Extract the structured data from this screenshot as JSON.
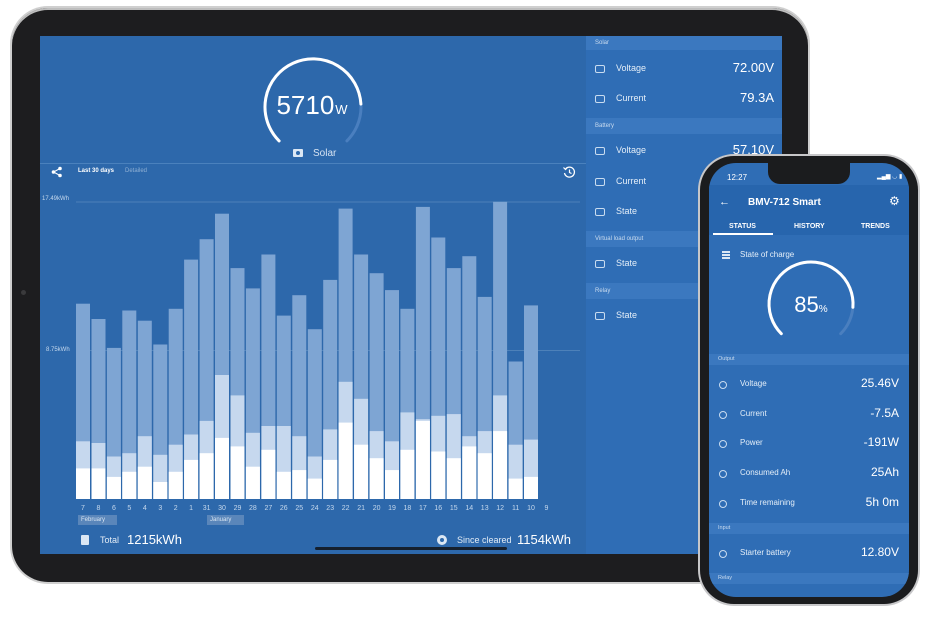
{
  "tablet": {
    "gauge": {
      "value": "5710",
      "unit": "W",
      "label": "Solar",
      "fraction": 0.82
    },
    "history_tabs": {
      "active": "Last 30 days",
      "inactive": "Detailed"
    },
    "chart_data": {
      "type": "bar",
      "title": "",
      "ylabel": "",
      "y_tick_labels": [
        "17.49kWh",
        "8.75kWh"
      ],
      "ylim": [
        0,
        17.49
      ],
      "categories": [
        "7",
        "8",
        "6",
        "5",
        "4",
        "3",
        "2",
        "1",
        "31",
        "30",
        "29",
        "28",
        "27",
        "26",
        "25",
        "24",
        "23",
        "22",
        "21",
        "20",
        "19",
        "18",
        "17",
        "16",
        "15",
        "14",
        "13",
        "12",
        "11",
        "10",
        "9"
      ],
      "series": [
        {
          "values": [
            11.5,
            10.6,
            8.9,
            11.1,
            10.5,
            9.1,
            11.2,
            14.1,
            15.3,
            16.8,
            13.6,
            12.4,
            14.4,
            10.8,
            12.0,
            10.0,
            12.9,
            17.1,
            14.4,
            13.3,
            12.3,
            11.2,
            17.2,
            15.4,
            13.6,
            14.3,
            11.9,
            17.5,
            8.1,
            11.4,
            0
          ]
        },
        {
          "values": [
            3.4,
            3.3,
            2.5,
            2.7,
            3.7,
            2.6,
            3.2,
            3.8,
            4.6,
            7.3,
            6.1,
            3.9,
            4.3,
            4.3,
            3.7,
            2.5,
            4.1,
            6.9,
            5.9,
            4.0,
            3.4,
            5.1,
            4.7,
            4.9,
            5.0,
            3.7,
            4.0,
            6.1,
            3.2,
            3.5,
            0
          ]
        },
        {
          "values": [
            1.8,
            1.8,
            1.3,
            1.6,
            1.9,
            1.0,
            1.6,
            2.3,
            2.7,
            3.6,
            3.1,
            1.9,
            2.9,
            1.6,
            1.7,
            1.2,
            2.3,
            4.5,
            3.2,
            2.4,
            1.7,
            2.9,
            4.6,
            2.8,
            2.4,
            3.1,
            2.7,
            4.0,
            1.2,
            1.3,
            0
          ]
        }
      ],
      "grid": true
    },
    "months": [
      "February",
      "January"
    ],
    "total": {
      "label": "Total",
      "value": "1215kWh"
    },
    "since_cleared": {
      "label": "Since cleared",
      "value": "1154kWh"
    },
    "list": {
      "solar_header": "Solar",
      "voltage": {
        "label": "Voltage",
        "value": "72.00V"
      },
      "current": {
        "label": "Current",
        "value": "79.3A"
      },
      "battery_header": "Battery",
      "bat_voltage": {
        "label": "Voltage",
        "value": "57.10V"
      },
      "bat_current": {
        "label": "Current",
        "value": ""
      },
      "bat_state": {
        "label": "State",
        "value": ""
      },
      "vlo_header": "Virtual load output",
      "vlo_state": {
        "label": "State",
        "value": ""
      },
      "relay_header": "Relay",
      "relay_state": {
        "label": "State",
        "value": ""
      }
    }
  },
  "phone": {
    "time": "12:27",
    "status_icons": "▂▄▆ ◡ ▮",
    "title": "BMV-712 Smart",
    "tabs": [
      "STATUS",
      "HISTORY",
      "TRENDS"
    ],
    "soc": {
      "label": "State of charge",
      "value": "85",
      "unit": "%",
      "fraction": 0.85
    },
    "output_header": "Output",
    "rows": [
      {
        "label": "Voltage",
        "value": "25.46V"
      },
      {
        "label": "Current",
        "value": "-7.5A"
      },
      {
        "label": "Power",
        "value": "-191W"
      },
      {
        "label": "Consumed Ah",
        "value": "25Ah"
      },
      {
        "label": "Time remaining",
        "value": "5h 0m"
      }
    ],
    "input_header": "Input",
    "starter": {
      "label": "Starter battery",
      "value": "12.80V"
    },
    "relay_header": "Relay"
  },
  "colors": {
    "screen_bg": "#2d68ab",
    "bar_light": "#7ea5d3",
    "bar_mid": "#c6d8ee",
    "bar_white": "#ffffff",
    "panel": "#2f6db5"
  }
}
